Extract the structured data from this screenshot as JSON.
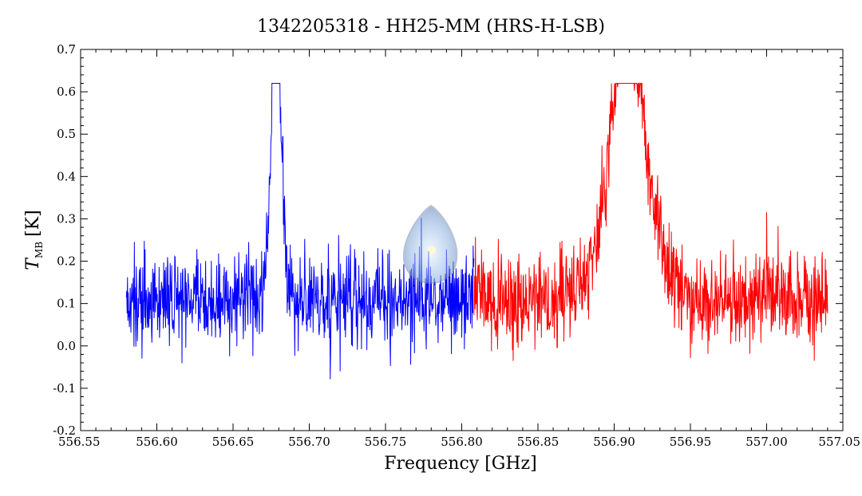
{
  "chart_data": {
    "type": "line",
    "title": "1342205318 - HH25-MM (HRS-H-LSB)",
    "xlabel": "Frequency [GHz]",
    "ylabel_main": "T",
    "ylabel_sub": "MB",
    "ylabel_unit": "[K]",
    "xlim": [
      556.55,
      557.05
    ],
    "ylim": [
      -0.2,
      0.7
    ],
    "x_ticks": [
      556.55,
      556.6,
      556.65,
      556.7,
      556.75,
      556.8,
      556.85,
      556.9,
      556.95,
      557.0,
      557.05
    ],
    "x_tick_labels": [
      "556.55",
      "556.60",
      "556.65",
      "556.70",
      "556.75",
      "556.80",
      "556.85",
      "556.90",
      "556.95",
      "557.00",
      "557.05"
    ],
    "y_ticks": [
      -0.2,
      -0.1,
      0.0,
      0.1,
      0.2,
      0.3,
      0.4,
      0.5,
      0.6,
      0.7
    ],
    "y_tick_labels": [
      "-0.2",
      "-0.1",
      "0.0",
      "0.1",
      "0.2",
      "0.3",
      "0.4",
      "0.5",
      "0.6",
      "0.7"
    ],
    "grid": false,
    "series": [
      {
        "color": "#0000ff",
        "x_start": 556.58,
        "x_end": 556.808,
        "baseline": 0.11,
        "noise": 0.055,
        "features": [
          {
            "center": 556.677,
            "peak": 0.47,
            "width": 0.003
          },
          {
            "center": 556.68,
            "peak": 0.3,
            "width": 0.003
          }
        ]
      },
      {
        "color": "#ff0000",
        "x_start": 556.808,
        "x_end": 557.04,
        "baseline": 0.11,
        "noise": 0.055,
        "features": [
          {
            "center": 556.91,
            "peak": 0.58,
            "width": 0.008
          },
          {
            "center": 556.9,
            "peak": 0.2,
            "width": 0.012
          },
          {
            "center": 556.925,
            "peak": 0.12,
            "width": 0.01
          },
          {
            "center": 556.914,
            "peak": -0.15,
            "width": 0.002
          }
        ]
      }
    ]
  }
}
